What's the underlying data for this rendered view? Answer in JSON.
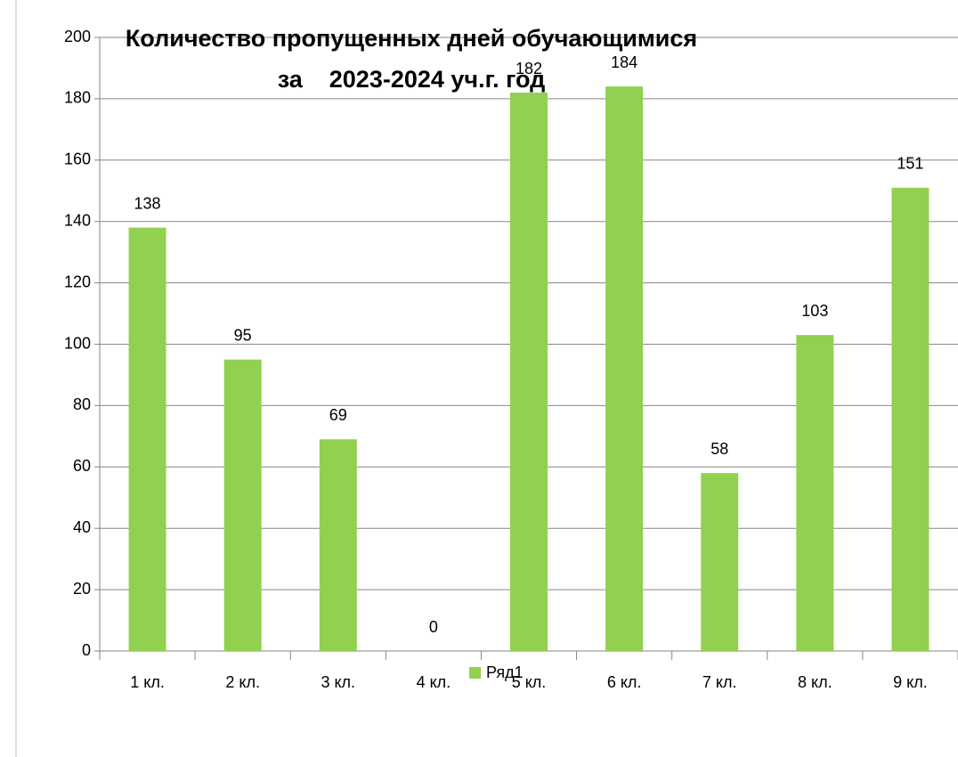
{
  "chart_data": {
    "type": "bar",
    "title": [
      "Количество пропущенных дней обучающимися",
      "за    2023-2024 уч.г. год"
    ],
    "categories": [
      "1 кл.",
      "2 кл.",
      "3 кл.",
      "4 кл.",
      "5 кл.",
      "6 кл.",
      "7 кл.",
      "8 кл.",
      "9 кл."
    ],
    "series": [
      {
        "name": "Ряд1",
        "color": "#92d050",
        "values": [
          138,
          95,
          69,
          0,
          182,
          184,
          58,
          103,
          151
        ]
      }
    ],
    "ylim": [
      0,
      200
    ],
    "yticks": [
      0,
      20,
      40,
      60,
      80,
      100,
      120,
      140,
      160,
      180,
      200
    ],
    "grid": true,
    "legend": "bottom"
  }
}
